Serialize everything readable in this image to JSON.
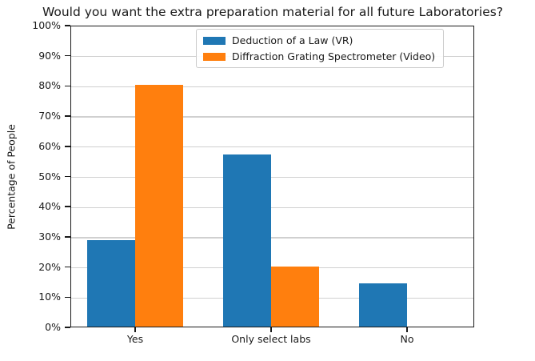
{
  "chart_data": {
    "type": "bar",
    "title": "Would you want the extra preparation material for all future Laboratories?",
    "xlabel": "",
    "ylabel": "Percentage of People",
    "categories": [
      "Yes",
      "Only select labs",
      "No"
    ],
    "series": [
      {
        "name": "Deduction of a Law (VR)",
        "color": "#1f77b4",
        "values": [
          28.57,
          57.14,
          14.29
        ]
      },
      {
        "name": "Diffraction Grating Spectrometer (Video)",
        "color": "#ff7f0e",
        "values": [
          80,
          20,
          0
        ]
      }
    ],
    "ylim": [
      0,
      100
    ],
    "ytick_step": 10,
    "ytick_suffix": "%",
    "grid": true,
    "legend_position": "upper center"
  }
}
